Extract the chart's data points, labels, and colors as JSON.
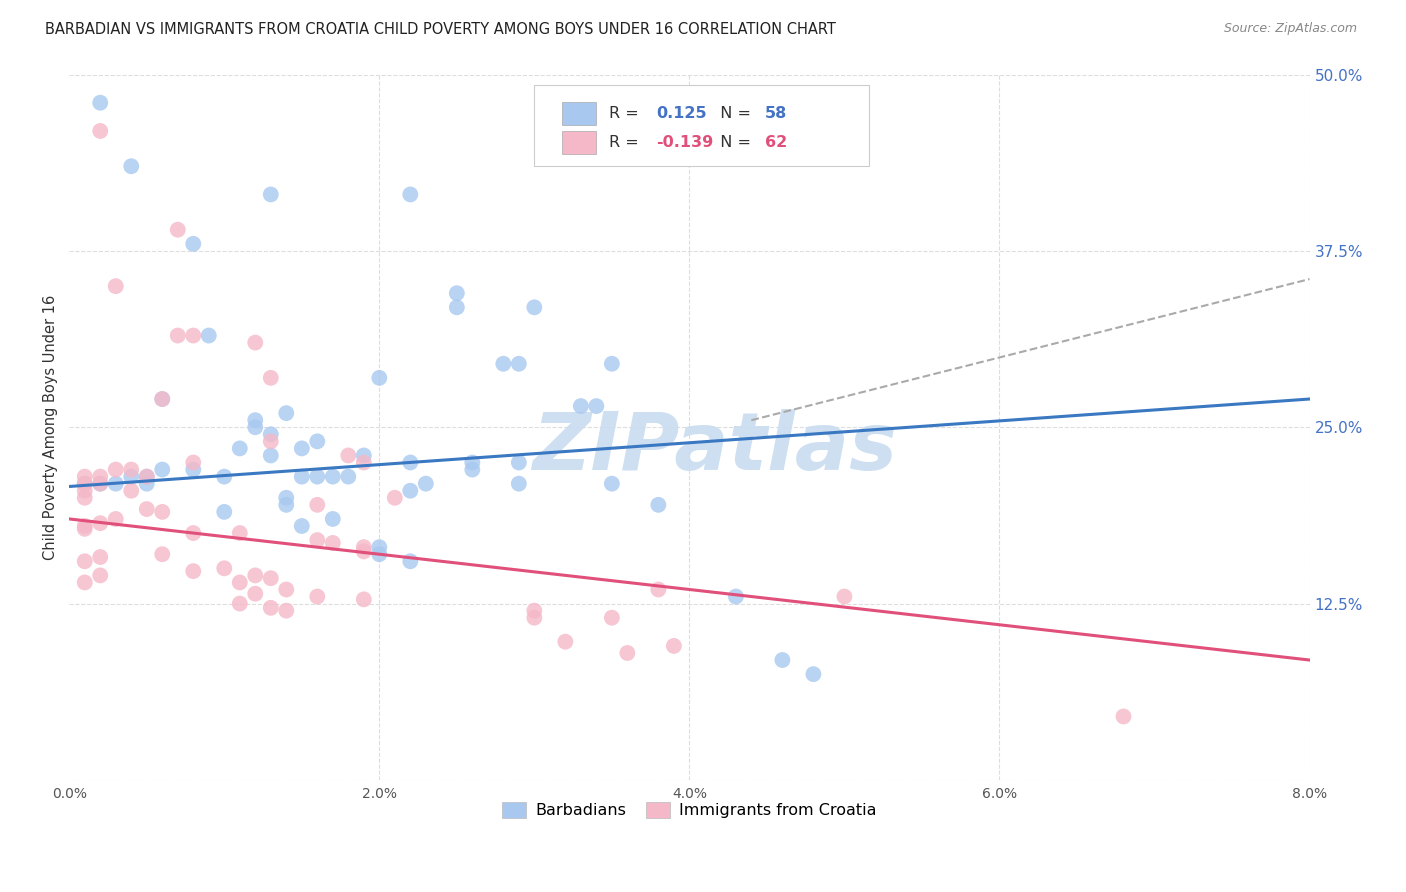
{
  "title": "BARBADIAN VS IMMIGRANTS FROM CROATIA CHILD POVERTY AMONG BOYS UNDER 16 CORRELATION CHART",
  "source": "Source: ZipAtlas.com",
  "ylabel": "Child Poverty Among Boys Under 16",
  "xlim": [
    0.0,
    0.08
  ],
  "ylim": [
    0.0,
    0.5
  ],
  "blue_R": 0.125,
  "blue_N": 58,
  "pink_R": -0.139,
  "pink_N": 62,
  "blue_color": "#A8C8F0",
  "pink_color": "#F5B8C8",
  "blue_line_color": "#3A78C2",
  "pink_line_color": "#E0507A",
  "dash_line_color": "#AAAAAA",
  "blue_line_y0": 0.208,
  "blue_line_y1": 0.27,
  "pink_line_y0": 0.185,
  "pink_line_y1": 0.085,
  "dash_line_x0": 0.044,
  "dash_line_y0": 0.255,
  "dash_line_x1": 0.08,
  "dash_line_y1": 0.355,
  "blue_scatter": [
    [
      0.002,
      0.48
    ],
    [
      0.004,
      0.435
    ],
    [
      0.013,
      0.415
    ],
    [
      0.008,
      0.38
    ],
    [
      0.009,
      0.315
    ],
    [
      0.022,
      0.415
    ],
    [
      0.025,
      0.345
    ],
    [
      0.025,
      0.335
    ],
    [
      0.028,
      0.295
    ],
    [
      0.029,
      0.295
    ],
    [
      0.03,
      0.335
    ],
    [
      0.033,
      0.265
    ],
    [
      0.034,
      0.265
    ],
    [
      0.02,
      0.285
    ],
    [
      0.006,
      0.27
    ],
    [
      0.035,
      0.295
    ],
    [
      0.014,
      0.26
    ],
    [
      0.012,
      0.255
    ],
    [
      0.012,
      0.25
    ],
    [
      0.013,
      0.245
    ],
    [
      0.016,
      0.24
    ],
    [
      0.015,
      0.235
    ],
    [
      0.011,
      0.235
    ],
    [
      0.013,
      0.23
    ],
    [
      0.019,
      0.23
    ],
    [
      0.022,
      0.225
    ],
    [
      0.026,
      0.225
    ],
    [
      0.029,
      0.225
    ],
    [
      0.026,
      0.22
    ],
    [
      0.008,
      0.22
    ],
    [
      0.006,
      0.22
    ],
    [
      0.01,
      0.215
    ],
    [
      0.004,
      0.215
    ],
    [
      0.005,
      0.215
    ],
    [
      0.018,
      0.215
    ],
    [
      0.017,
      0.215
    ],
    [
      0.016,
      0.215
    ],
    [
      0.015,
      0.215
    ],
    [
      0.001,
      0.21
    ],
    [
      0.002,
      0.21
    ],
    [
      0.003,
      0.21
    ],
    [
      0.005,
      0.21
    ],
    [
      0.023,
      0.21
    ],
    [
      0.029,
      0.21
    ],
    [
      0.022,
      0.205
    ],
    [
      0.014,
      0.2
    ],
    [
      0.014,
      0.195
    ],
    [
      0.01,
      0.19
    ],
    [
      0.017,
      0.185
    ],
    [
      0.015,
      0.18
    ],
    [
      0.02,
      0.165
    ],
    [
      0.02,
      0.16
    ],
    [
      0.022,
      0.155
    ],
    [
      0.035,
      0.21
    ],
    [
      0.038,
      0.195
    ],
    [
      0.043,
      0.13
    ],
    [
      0.046,
      0.085
    ],
    [
      0.048,
      0.075
    ]
  ],
  "pink_scatter": [
    [
      0.002,
      0.46
    ],
    [
      0.007,
      0.39
    ],
    [
      0.007,
      0.315
    ],
    [
      0.012,
      0.31
    ],
    [
      0.008,
      0.315
    ],
    [
      0.003,
      0.35
    ],
    [
      0.013,
      0.285
    ],
    [
      0.006,
      0.27
    ],
    [
      0.013,
      0.24
    ],
    [
      0.018,
      0.23
    ],
    [
      0.019,
      0.225
    ],
    [
      0.008,
      0.225
    ],
    [
      0.003,
      0.22
    ],
    [
      0.004,
      0.22
    ],
    [
      0.005,
      0.215
    ],
    [
      0.002,
      0.215
    ],
    [
      0.001,
      0.215
    ],
    [
      0.001,
      0.21
    ],
    [
      0.002,
      0.21
    ],
    [
      0.004,
      0.205
    ],
    [
      0.001,
      0.205
    ],
    [
      0.001,
      0.2
    ],
    [
      0.021,
      0.2
    ],
    [
      0.016,
      0.195
    ],
    [
      0.005,
      0.192
    ],
    [
      0.006,
      0.19
    ],
    [
      0.003,
      0.185
    ],
    [
      0.002,
      0.182
    ],
    [
      0.001,
      0.18
    ],
    [
      0.001,
      0.178
    ],
    [
      0.008,
      0.175
    ],
    [
      0.011,
      0.175
    ],
    [
      0.016,
      0.17
    ],
    [
      0.017,
      0.168
    ],
    [
      0.019,
      0.165
    ],
    [
      0.019,
      0.162
    ],
    [
      0.006,
      0.16
    ],
    [
      0.002,
      0.158
    ],
    [
      0.001,
      0.155
    ],
    [
      0.01,
      0.15
    ],
    [
      0.008,
      0.148
    ],
    [
      0.012,
      0.145
    ],
    [
      0.013,
      0.143
    ],
    [
      0.011,
      0.14
    ],
    [
      0.014,
      0.135
    ],
    [
      0.012,
      0.132
    ],
    [
      0.016,
      0.13
    ],
    [
      0.019,
      0.128
    ],
    [
      0.011,
      0.125
    ],
    [
      0.013,
      0.122
    ],
    [
      0.014,
      0.12
    ],
    [
      0.03,
      0.12
    ],
    [
      0.03,
      0.115
    ],
    [
      0.032,
      0.098
    ],
    [
      0.038,
      0.135
    ],
    [
      0.039,
      0.095
    ],
    [
      0.036,
      0.09
    ],
    [
      0.035,
      0.115
    ],
    [
      0.05,
      0.13
    ],
    [
      0.068,
      0.045
    ],
    [
      0.002,
      0.145
    ],
    [
      0.001,
      0.14
    ]
  ],
  "watermark_text": "ZIPatlas",
  "watermark_color": "#C8DCF0",
  "background_color": "#FFFFFF",
  "grid_color": "#DDDDDD",
  "right_tick_color": "#4472C4",
  "legend_text_color": "#333333",
  "legend_blue_val_color": "#4472C4",
  "legend_pink_val_color": "#E0507A"
}
